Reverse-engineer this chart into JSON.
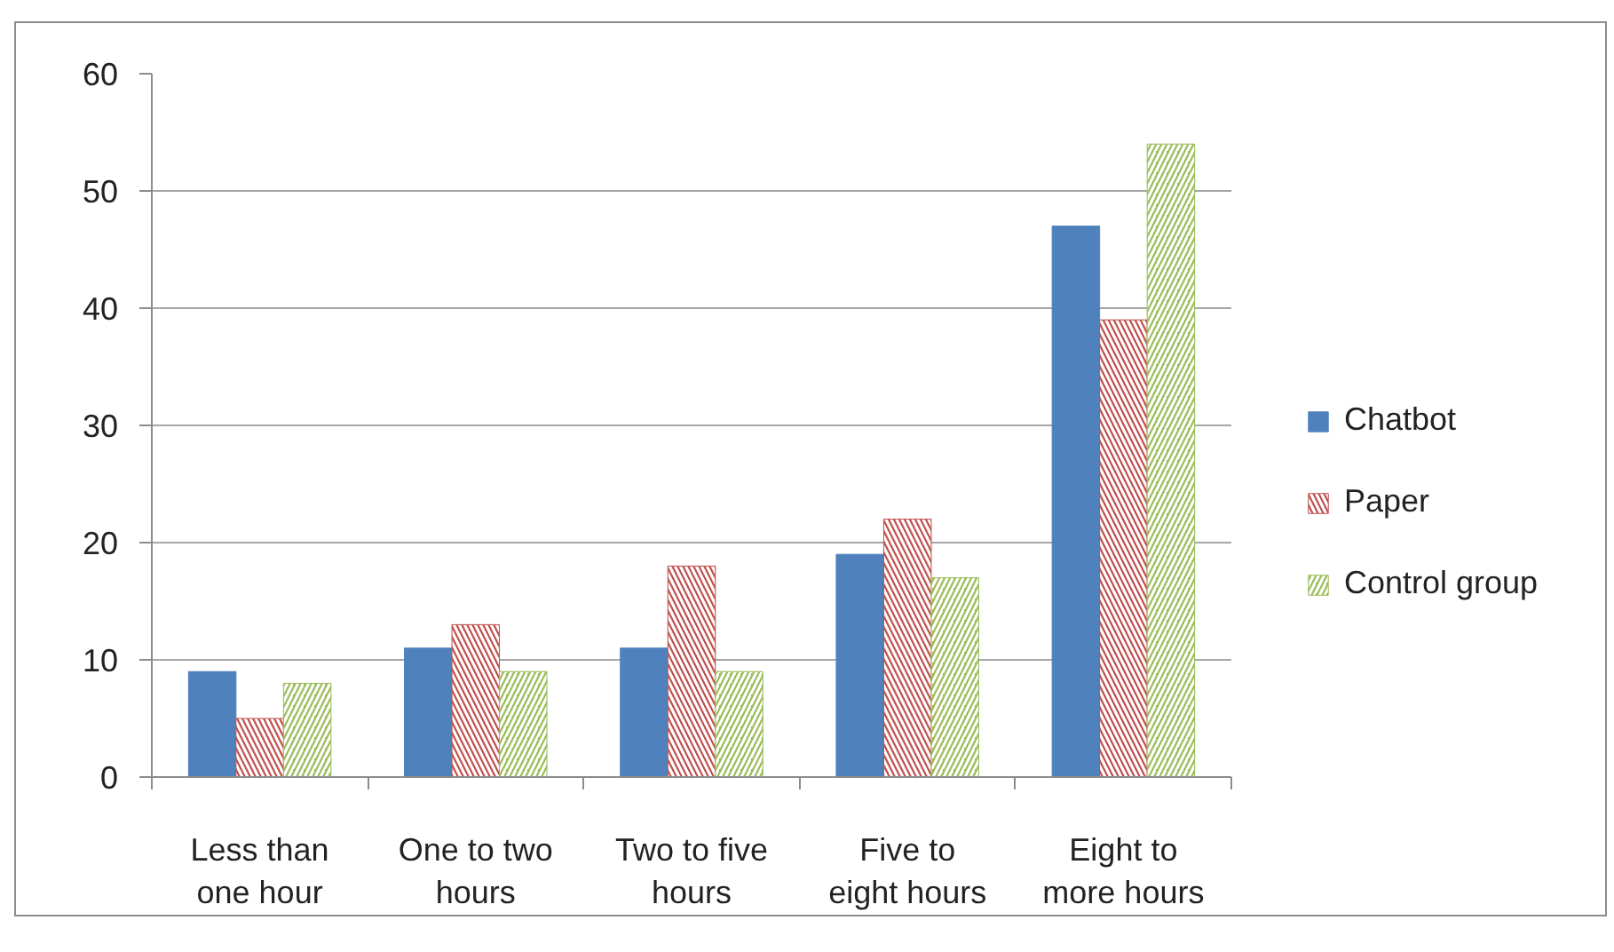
{
  "chart_data": {
    "type": "bar",
    "categories": [
      "Less than one hour",
      "One to two hours",
      "Two to five hours",
      "Five to eight hours",
      "Eight to more hours"
    ],
    "series": [
      {
        "name": "Chatbot",
        "color": "#4f81bd",
        "values": [
          9,
          11,
          11,
          19,
          47
        ]
      },
      {
        "name": "Paper",
        "color": "#c0504d",
        "values": [
          5,
          13,
          18,
          22,
          39
        ]
      },
      {
        "name": "Control group",
        "color": "#9bbb59",
        "values": [
          8,
          9,
          9,
          17,
          54
        ]
      }
    ],
    "ylim": [
      0,
      60
    ],
    "yticks": [
      0,
      10,
      20,
      30,
      40,
      50,
      60
    ],
    "grid": "y",
    "legend": "right"
  }
}
